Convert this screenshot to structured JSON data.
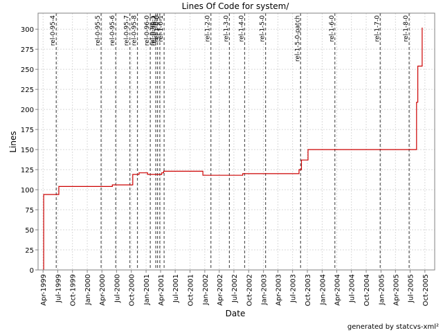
{
  "chart_data": {
    "type": "line",
    "title": "Lines Of Code for system/",
    "xlabel": "Date",
    "ylabel": "Lines",
    "credit": "generated by statcvs-xml²",
    "xlim": [
      "1999-03-01",
      "2005-12-01"
    ],
    "ylim": [
      0,
      320
    ],
    "grid": true,
    "yticks": [
      0,
      25,
      50,
      75,
      100,
      125,
      150,
      175,
      200,
      225,
      250,
      275,
      300
    ],
    "xticks": [
      {
        "date": "1999-04-01",
        "label": "Apr-1999"
      },
      {
        "date": "1999-07-01",
        "label": "Jul-1999"
      },
      {
        "date": "1999-10-01",
        "label": "Oct-1999"
      },
      {
        "date": "2000-01-01",
        "label": "Jan-2000"
      },
      {
        "date": "2000-04-01",
        "label": "Apr-2000"
      },
      {
        "date": "2000-07-01",
        "label": "Jul-2000"
      },
      {
        "date": "2000-10-01",
        "label": "Oct-2000"
      },
      {
        "date": "2001-01-01",
        "label": "Jan-2001"
      },
      {
        "date": "2001-04-01",
        "label": "Apr-2001"
      },
      {
        "date": "2001-07-01",
        "label": "Jul-2001"
      },
      {
        "date": "2001-10-01",
        "label": "Oct-2001"
      },
      {
        "date": "2002-01-01",
        "label": "Jan-2002"
      },
      {
        "date": "2002-04-01",
        "label": "Apr-2002"
      },
      {
        "date": "2002-07-01",
        "label": "Jul-2002"
      },
      {
        "date": "2002-10-01",
        "label": "Oct-2002"
      },
      {
        "date": "2003-01-01",
        "label": "Jan-2003"
      },
      {
        "date": "2003-04-01",
        "label": "Apr-2003"
      },
      {
        "date": "2003-07-01",
        "label": "Jul-2003"
      },
      {
        "date": "2003-10-01",
        "label": "Oct-2003"
      },
      {
        "date": "2004-01-01",
        "label": "Jan-2004"
      },
      {
        "date": "2004-04-01",
        "label": "Apr-2004"
      },
      {
        "date": "2004-07-01",
        "label": "Jul-2004"
      },
      {
        "date": "2004-10-01",
        "label": "Oct-2004"
      },
      {
        "date": "2005-01-01",
        "label": "Jan-2005"
      },
      {
        "date": "2005-04-01",
        "label": "Apr-2005"
      },
      {
        "date": "2005-07-01",
        "label": "Jul-2005"
      },
      {
        "date": "2005-10-01",
        "label": "Oct-2005"
      }
    ],
    "markers": [
      {
        "label": "rel-0-95-4",
        "date": "1999-06-22"
      },
      {
        "label": "rel-0-95-5",
        "date": "2000-03-27"
      },
      {
        "label": "rel-0-95-6",
        "date": "2000-06-26"
      },
      {
        "label": "rel-0-95-7",
        "date": "2000-09-22"
      },
      {
        "label": "rel-0-95-8",
        "date": "2000-11-08"
      },
      {
        "label": "rel-0-96-0",
        "date": "2001-01-27"
      },
      {
        "label": "rel-0-96-1",
        "date": "2001-03-02"
      },
      {
        "label": "rel-0-96-2",
        "date": "2001-03-13"
      },
      {
        "label": "rel-1-0-0",
        "date": "2001-03-27"
      },
      {
        "label": "rel-1-0-1",
        "date": "2001-04-23"
      },
      {
        "label": "rel-1-2-0",
        "date": "2002-02-08"
      },
      {
        "label": "rel-1-3-0",
        "date": "2002-06-03"
      },
      {
        "label": "rel-1-4-0",
        "date": "2002-09-06"
      },
      {
        "label": "rel-1-5-0",
        "date": "2003-01-14"
      },
      {
        "label": "rel-1-5-0-patch",
        "date": "2003-08-20"
      },
      {
        "label": "rel-1-6-0",
        "date": "2004-03-20"
      },
      {
        "label": "rel-1-7-0",
        "date": "2004-12-27"
      },
      {
        "label": "rel-1-8-0",
        "date": "2005-06-25"
      }
    ],
    "series": [
      {
        "color": "#cc0000",
        "points": [
          {
            "x": "1999-04-05",
            "y": 0
          },
          {
            "x": "1999-04-05",
            "y": 94
          },
          {
            "x": "1999-07-08",
            "y": 94
          },
          {
            "x": "1999-07-08",
            "y": 104
          },
          {
            "x": "2000-06-05",
            "y": 104
          },
          {
            "x": "2000-06-05",
            "y": 106
          },
          {
            "x": "2000-10-10",
            "y": 106
          },
          {
            "x": "2000-10-10",
            "y": 119
          },
          {
            "x": "2000-11-18",
            "y": 119
          },
          {
            "x": "2000-11-18",
            "y": 121
          },
          {
            "x": "2001-01-10",
            "y": 121
          },
          {
            "x": "2001-01-10",
            "y": 119
          },
          {
            "x": "2001-04-08",
            "y": 119
          },
          {
            "x": "2001-04-08",
            "y": 121
          },
          {
            "x": "2001-04-20",
            "y": 121
          },
          {
            "x": "2001-04-20",
            "y": 123
          },
          {
            "x": "2001-12-20",
            "y": 123
          },
          {
            "x": "2001-12-20",
            "y": 118
          },
          {
            "x": "2002-08-25",
            "y": 118
          },
          {
            "x": "2002-08-25",
            "y": 120
          },
          {
            "x": "2003-08-10",
            "y": 120
          },
          {
            "x": "2003-08-10",
            "y": 125
          },
          {
            "x": "2003-08-25",
            "y": 125
          },
          {
            "x": "2003-08-25",
            "y": 137
          },
          {
            "x": "2003-10-05",
            "y": 137
          },
          {
            "x": "2003-10-05",
            "y": 150
          },
          {
            "x": "2005-08-10",
            "y": 150
          },
          {
            "x": "2005-08-10",
            "y": 209
          },
          {
            "x": "2005-08-18",
            "y": 209
          },
          {
            "x": "2005-08-18",
            "y": 254
          },
          {
            "x": "2005-09-14",
            "y": 254
          },
          {
            "x": "2005-09-14",
            "y": 302
          }
        ]
      }
    ]
  }
}
